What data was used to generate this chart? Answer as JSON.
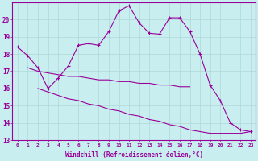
{
  "xlabel": "Windchill (Refroidissement éolien,°C)",
  "background_color": "#c8eef0",
  "line_color": "#990099",
  "grid_color": "#b0d8d8",
  "x_main": [
    0,
    1,
    2,
    3,
    4,
    5,
    6,
    7,
    8,
    9,
    10,
    11,
    12,
    13,
    14,
    15,
    16,
    17,
    18,
    19,
    20,
    21,
    22,
    23
  ],
  "y_main": [
    18.4,
    17.9,
    17.2,
    16.0,
    16.6,
    17.3,
    18.5,
    18.6,
    18.5,
    19.3,
    20.5,
    20.8,
    19.8,
    19.2,
    19.15,
    20.1,
    20.1,
    19.3,
    18.0,
    16.2,
    15.3,
    14.0,
    13.6,
    13.5
  ],
  "x_mid": [
    1,
    2,
    3,
    4,
    5,
    6,
    7,
    8,
    9,
    10,
    11,
    12,
    13,
    14,
    15,
    16,
    17
  ],
  "y_mid": [
    17.2,
    17.0,
    16.9,
    16.8,
    16.7,
    16.7,
    16.6,
    16.5,
    16.5,
    16.4,
    16.4,
    16.3,
    16.3,
    16.2,
    16.2,
    16.1,
    16.1
  ],
  "x_low": [
    2,
    3,
    4,
    5,
    6,
    7,
    8,
    9,
    10,
    11,
    12,
    13,
    14,
    15,
    16,
    17,
    18,
    19,
    20,
    21,
    22,
    23
  ],
  "y_low": [
    16.0,
    15.8,
    15.6,
    15.4,
    15.3,
    15.1,
    15.0,
    14.8,
    14.7,
    14.5,
    14.4,
    14.2,
    14.1,
    13.9,
    13.8,
    13.6,
    13.5,
    13.4,
    13.4,
    13.4,
    13.4,
    13.5
  ],
  "ylim": [
    13,
    21
  ],
  "xlim": [
    -0.5,
    23.5
  ],
  "yticks": [
    13,
    14,
    15,
    16,
    17,
    18,
    19,
    20
  ],
  "xticks": [
    0,
    1,
    2,
    3,
    4,
    5,
    6,
    7,
    8,
    9,
    10,
    11,
    12,
    13,
    14,
    15,
    16,
    17,
    18,
    19,
    20,
    21,
    22,
    23
  ]
}
